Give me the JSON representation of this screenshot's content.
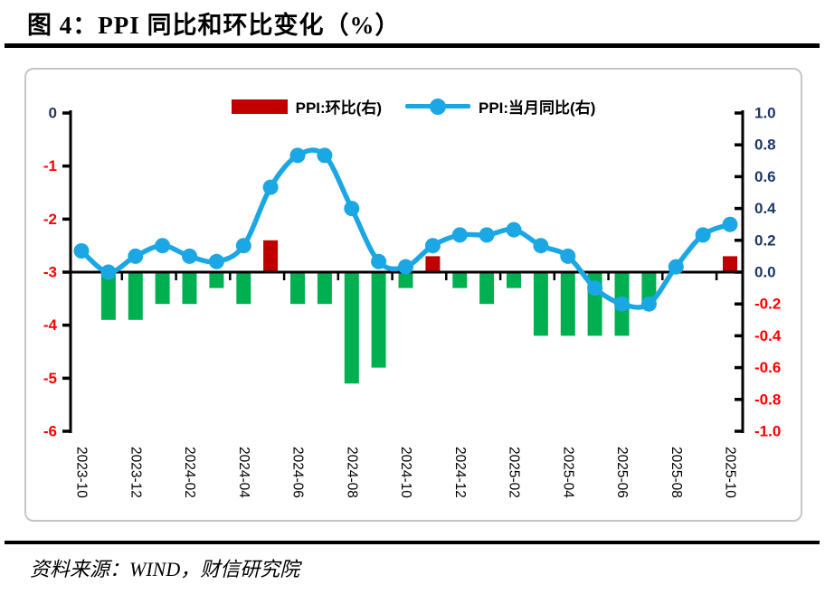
{
  "title": "图 4：PPI 同比和环比变化（%）",
  "source": "资料来源：WIND，财信研究院",
  "colors": {
    "line_blue": "#1BA7E3",
    "bar_positive_red": "#C00000",
    "bar_negative_green": "#00B050",
    "axis_label_navy": "#1F3864",
    "axis_label_negative_red": "#FF0000",
    "axis_black": "#000000",
    "frame_gray": "#C6C6C6"
  },
  "legend": {
    "items": [
      {
        "label": "PPI:环比(右)",
        "swatch": "bar",
        "color": "#C00000"
      },
      {
        "label": "PPI:当月同比(右)",
        "swatch": "line-marker",
        "color": "#1BA7E3"
      }
    ]
  },
  "chart_data": {
    "type": "bar+line combo",
    "title": "图 4：PPI 同比和环比变化（%）",
    "grid": "off",
    "legend_position": "top-center",
    "categories": [
      "2023-10",
      "2023-11",
      "2023-12",
      "2024-01",
      "2024-02",
      "2024-03",
      "2024-04",
      "2024-05",
      "2024-06",
      "2024-07",
      "2024-08",
      "2024-09",
      "2024-10",
      "2024-11",
      "2024-12",
      "2025-01",
      "2025-02",
      "2025-03",
      "2025-04",
      "2025-05",
      "2025-06",
      "2025-07",
      "2025-08",
      "2025-09",
      "2025-10"
    ],
    "x_tick_labels": [
      "2023-10",
      "2023-12",
      "2024-02",
      "2024-04",
      "2024-06",
      "2024-08",
      "2024-10",
      "2024-12",
      "2025-02",
      "2025-04",
      "2025-06",
      "2025-08",
      "2025-10"
    ],
    "x_label_every": 2,
    "x_label_rotation_deg": 90,
    "series": [
      {
        "name": "PPI:环比(右)",
        "type": "bar",
        "axis": "right",
        "color_positive": "#C00000",
        "color_negative": "#00B050",
        "values": [
          0.0,
          -0.3,
          -0.3,
          -0.2,
          -0.2,
          -0.1,
          -0.2,
          0.2,
          -0.2,
          -0.2,
          -0.7,
          -0.6,
          -0.1,
          0.1,
          -0.1,
          -0.2,
          -0.1,
          -0.4,
          -0.4,
          -0.4,
          -0.4,
          -0.2,
          0.0,
          0.0,
          0.1
        ]
      },
      {
        "name": "PPI:当月同比(右)",
        "type": "line",
        "axis": "left",
        "color": "#1BA7E3",
        "smooth": true,
        "marker": "circle",
        "values": [
          -2.6,
          -3.0,
          -2.7,
          -2.5,
          -2.7,
          -2.8,
          -2.5,
          -1.4,
          -0.8,
          -0.8,
          -1.8,
          -2.8,
          -2.9,
          -2.5,
          -2.3,
          -2.3,
          -2.2,
          -2.5,
          -2.7,
          -3.3,
          -3.6,
          -3.6,
          -2.9,
          -2.3,
          -2.1
        ]
      }
    ],
    "left_axis": {
      "max": 0,
      "min": -6,
      "ticks": [
        "0",
        "-1",
        "-2",
        "-3",
        "-4",
        "-5",
        "-6"
      ]
    },
    "right_axis": {
      "max": 1.0,
      "min": -1.0,
      "ticks": [
        "1.0",
        "0.8",
        "0.6",
        "0.4",
        "0.2",
        "0.0",
        "-0.2",
        "-0.4",
        "-0.6",
        "-0.8",
        "-1.0"
      ]
    }
  }
}
